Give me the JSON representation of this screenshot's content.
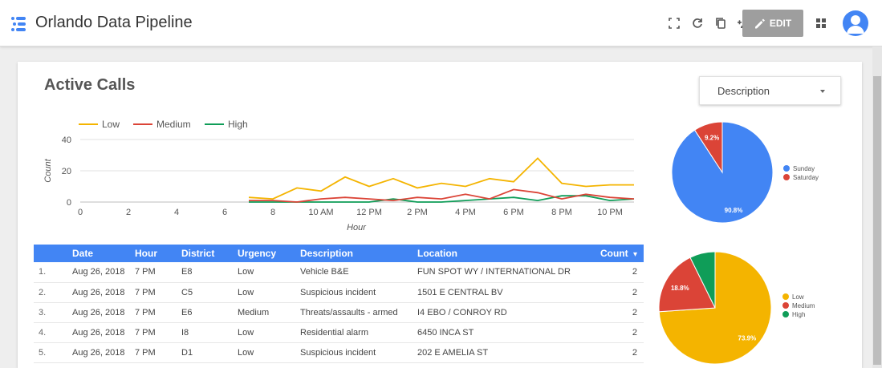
{
  "header": {
    "title": "Orlando Data Pipeline",
    "edit_label": "EDIT",
    "icons": [
      "fullscreen-icon",
      "refresh-icon",
      "copy-icon",
      "share-person-icon",
      "edit-pencil-icon",
      "apps-grid-icon",
      "avatar"
    ]
  },
  "section": {
    "title": "Active Calls"
  },
  "dropdown": {
    "label": "Description"
  },
  "colors": {
    "low": "#f4b400",
    "medium": "#db4437",
    "high": "#0f9d58",
    "sunday": "#4285f4",
    "saturday": "#db4437",
    "table_header": "#4285f4"
  },
  "chart_data": [
    {
      "type": "line",
      "xlabel": "Hour",
      "ylabel": "Count",
      "ylim": [
        0,
        40
      ],
      "yticks": [
        0,
        20,
        40
      ],
      "xlim": [
        0,
        23
      ],
      "xticks": [
        {
          "x": 0,
          "label": "0"
        },
        {
          "x": 2,
          "label": "2"
        },
        {
          "x": 4,
          "label": "4"
        },
        {
          "x": 6,
          "label": "6"
        },
        {
          "x": 8,
          "label": "8"
        },
        {
          "x": 10,
          "label": "10 AM"
        },
        {
          "x": 12,
          "label": "12 PM"
        },
        {
          "x": 14,
          "label": "2 PM"
        },
        {
          "x": 16,
          "label": "4 PM"
        },
        {
          "x": 18,
          "label": "6 PM"
        },
        {
          "x": 20,
          "label": "8 PM"
        },
        {
          "x": 22,
          "label": "10 PM"
        }
      ],
      "grid": true,
      "legend_position": "top-left",
      "x": [
        7,
        8,
        9,
        10,
        11,
        12,
        13,
        14,
        15,
        16,
        17,
        18,
        19,
        20,
        21,
        22,
        23
      ],
      "series": [
        {
          "name": "Low",
          "color": "#f4b400",
          "values": [
            3,
            2,
            9,
            7,
            16,
            10,
            15,
            9,
            12,
            10,
            15,
            13,
            28,
            12,
            10,
            11,
            11
          ]
        },
        {
          "name": "Medium",
          "color": "#db4437",
          "values": [
            1,
            1,
            0,
            2,
            3,
            2,
            1,
            3,
            2,
            5,
            2,
            8,
            6,
            2,
            5,
            3,
            2
          ]
        },
        {
          "name": "High",
          "color": "#0f9d58",
          "values": [
            0,
            0,
            0,
            0,
            0,
            0,
            2,
            0,
            0,
            1,
            2,
            3,
            1,
            4,
            4,
            1,
            2
          ]
        }
      ]
    },
    {
      "type": "pie",
      "legend_position": "right",
      "slices": [
        {
          "name": "Sunday",
          "value": 90.8,
          "label": "90.8%",
          "color": "#4285f4"
        },
        {
          "name": "Saturday",
          "value": 9.2,
          "label": "9.2%",
          "color": "#db4437"
        }
      ]
    },
    {
      "type": "pie",
      "legend_position": "right",
      "slices": [
        {
          "name": "Low",
          "value": 73.9,
          "label": "73.9%",
          "color": "#f4b400"
        },
        {
          "name": "Medium",
          "value": 18.8,
          "label": "18.8%",
          "color": "#db4437"
        },
        {
          "name": "High",
          "value": 7.3,
          "label": "",
          "color": "#0f9d58"
        }
      ]
    }
  ],
  "table": {
    "columns": [
      "Date",
      "Hour",
      "District",
      "Urgency",
      "Description",
      "Location",
      "Count"
    ],
    "sort_indicator": "▾",
    "rows": [
      {
        "idx": "1.",
        "date": "Aug 26, 2018",
        "hour": "7 PM",
        "district": "E8",
        "urgency": "Low",
        "description": "Vehicle B&E",
        "location": "FUN SPOT WY / INTERNATIONAL DR",
        "count": "2"
      },
      {
        "idx": "2.",
        "date": "Aug 26, 2018",
        "hour": "7 PM",
        "district": "C5",
        "urgency": "Low",
        "description": "Suspicious incident",
        "location": "1501 E CENTRAL BV",
        "count": "2"
      },
      {
        "idx": "3.",
        "date": "Aug 26, 2018",
        "hour": "7 PM",
        "district": "E6",
        "urgency": "Medium",
        "description": "Threats/assaults - armed",
        "location": "I4 EBO / CONROY RD",
        "count": "2"
      },
      {
        "idx": "4.",
        "date": "Aug 26, 2018",
        "hour": "7 PM",
        "district": "I8",
        "urgency": "Low",
        "description": "Residential alarm",
        "location": "6450 INCA ST",
        "count": "2"
      },
      {
        "idx": "5.",
        "date": "Aug 26, 2018",
        "hour": "7 PM",
        "district": "D1",
        "urgency": "Low",
        "description": "Suspicious incident",
        "location": "202 E AMELIA ST",
        "count": "2"
      }
    ]
  }
}
